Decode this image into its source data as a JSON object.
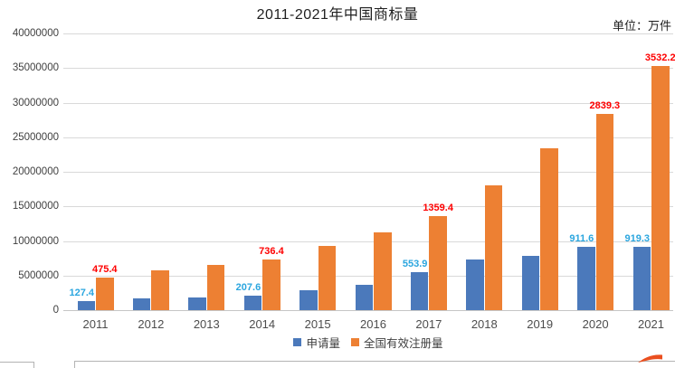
{
  "page": {
    "title": "2011-2021年中国商标量",
    "unit_label": "单位：万件"
  },
  "chart_data": {
    "type": "bar",
    "title": "2011-2021年中国商标量",
    "unit": "万件",
    "categories": [
      "2011",
      "2012",
      "2013",
      "2014",
      "2015",
      "2016",
      "2017",
      "2018",
      "2019",
      "2020",
      "2021"
    ],
    "series": [
      {
        "name": "申请量",
        "color": "#4B79BB",
        "label_color": "#2BA6DF",
        "values": [
          127.4,
          165,
          188,
          207.6,
          288,
          369,
          553.9,
          737,
          784,
          911.6,
          919.3
        ],
        "data_labels": [
          "127.4",
          null,
          null,
          "207.6",
          null,
          null,
          "553.9",
          null,
          null,
          "911.6",
          "919.3"
        ]
      },
      {
        "name": "全国有效注册量",
        "color": "#ED8033",
        "label_color": "#FE0000",
        "values": [
          475.4,
          570,
          650,
          736.4,
          930,
          1120,
          1359.4,
          1810,
          2340,
          2839.3,
          3532.2
        ],
        "data_labels": [
          "475.4",
          null,
          null,
          "736.4",
          null,
          null,
          "1359.4",
          null,
          null,
          "2839.3",
          "3532.2"
        ]
      }
    ],
    "y_axis": {
      "min": 0,
      "max": 40000000,
      "ticks": [
        0,
        5000000,
        10000000,
        15000000,
        20000000,
        25000000,
        30000000,
        35000000,
        40000000
      ],
      "gridlines": true
    },
    "legend": {
      "position": "bottom",
      "entries": [
        "申请量",
        "全国有效注册量"
      ]
    },
    "colors": {
      "gridline": "#d9d9d9",
      "axis_text": "#404040",
      "swoosh": "#ea4f1f"
    }
  }
}
